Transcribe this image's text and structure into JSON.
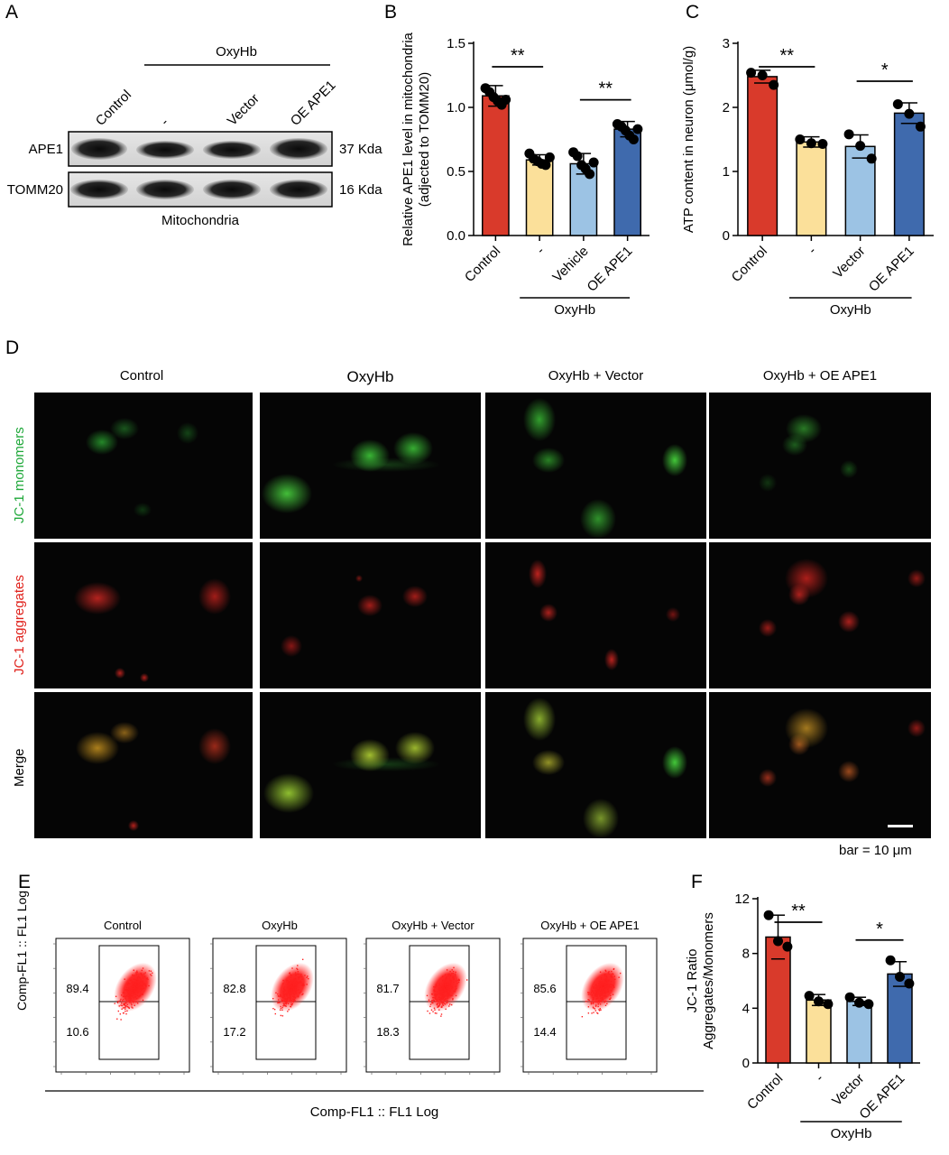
{
  "panel_labels": {
    "a": "A",
    "b": "B",
    "c": "C",
    "d": "D",
    "e": "E",
    "f": "F"
  },
  "panel_a": {
    "group_label": "OxyHb",
    "lanes": [
      "Control",
      "-",
      "Vector",
      "OE APE1"
    ],
    "rows": [
      {
        "protein": "APE1",
        "size": "37 Kda"
      },
      {
        "protein": "TOMM20",
        "size": "16 Kda"
      }
    ],
    "caption": "Mitochondria"
  },
  "chart_data": [
    {
      "id": "B",
      "type": "bar",
      "categories": [
        "Control",
        "-",
        "Vehicle",
        "OE APE1"
      ],
      "values": [
        1.09,
        0.59,
        0.56,
        0.83
      ],
      "errors": [
        0.08,
        0.04,
        0.08,
        0.06
      ],
      "points": [
        [
          1.15,
          1.12,
          1.08,
          1.05,
          1.02,
          1.06
        ],
        [
          0.64,
          0.6,
          0.58,
          0.56,
          0.55,
          0.61
        ],
        [
          0.65,
          0.62,
          0.55,
          0.52,
          0.48,
          0.57
        ],
        [
          0.87,
          0.85,
          0.82,
          0.78,
          0.75,
          0.83
        ]
      ],
      "colors": [
        "#d93a2b",
        "#fbe09a",
        "#9cc3e4",
        "#3f6aad"
      ],
      "ylim": [
        0,
        1.5
      ],
      "yticks": [
        0.0,
        0.5,
        1.0,
        1.5
      ],
      "ytick_labels": [
        "0.0",
        "0.5",
        "1.0",
        "1.5"
      ],
      "ylabel_lines": [
        "Relative APE1 level in mitochondria",
        "(adjected to TOMM20)"
      ],
      "group_label": "OxyHb",
      "significance": [
        {
          "from": 0,
          "to": 1,
          "label": "**"
        },
        {
          "from": 2,
          "to": 3,
          "label": "**"
        }
      ]
    },
    {
      "id": "C",
      "type": "bar",
      "categories": [
        "Control",
        "-",
        "Vector",
        "OE APE1"
      ],
      "values": [
        2.48,
        1.46,
        1.39,
        1.91
      ],
      "errors": [
        0.1,
        0.08,
        0.18,
        0.16
      ],
      "points": [
        [
          2.54,
          2.5,
          2.35
        ],
        [
          1.5,
          1.44,
          1.43
        ],
        [
          1.58,
          1.4,
          1.2
        ],
        [
          2.05,
          1.9,
          1.7
        ]
      ],
      "colors": [
        "#d93a2b",
        "#fbe09a",
        "#9cc3e4",
        "#3f6aad"
      ],
      "ylim": [
        0,
        3
      ],
      "yticks": [
        0,
        1,
        2,
        3
      ],
      "ytick_labels": [
        "0",
        "1",
        "2",
        "3"
      ],
      "ylabel_lines": [
        "ATP content in neuron (μmol/g)"
      ],
      "group_label": "OxyHb",
      "significance": [
        {
          "from": 0,
          "to": 1,
          "label": "**"
        },
        {
          "from": 2,
          "to": 3,
          "label": "*"
        }
      ]
    },
    {
      "id": "F",
      "type": "bar",
      "categories": [
        "Control",
        "-",
        "Vector",
        "OE APE1"
      ],
      "values": [
        9.2,
        4.6,
        4.5,
        6.5
      ],
      "errors": [
        1.6,
        0.4,
        0.3,
        0.9
      ],
      "points": [
        [
          10.8,
          8.9,
          8.5
        ],
        [
          4.9,
          4.5,
          4.3
        ],
        [
          4.8,
          4.4,
          4.3
        ],
        [
          7.5,
          6.3,
          5.8
        ]
      ],
      "colors": [
        "#d93a2b",
        "#fbe09a",
        "#9cc3e4",
        "#3f6aad"
      ],
      "ylim": [
        0,
        12
      ],
      "yticks": [
        0,
        4,
        8,
        12
      ],
      "ytick_labels": [
        "0",
        "4",
        "8",
        "12"
      ],
      "ylabel_lines": [
        "JC-1 Ratio",
        "Aggregates/Monomers"
      ],
      "group_label": "OxyHb",
      "significance": [
        {
          "from": 0,
          "to": 1,
          "label": "**"
        },
        {
          "from": 2,
          "to": 3,
          "label": "*"
        }
      ]
    },
    {
      "id": "E",
      "type": "scatter",
      "plots": [
        {
          "title": "Control",
          "upper_pct": "89.4",
          "lower_pct": "10.6"
        },
        {
          "title": "OxyHb",
          "upper_pct": "82.8",
          "lower_pct": "17.2"
        },
        {
          "title": "OxyHb + Vector",
          "upper_pct": "81.7",
          "lower_pct": "18.3"
        },
        {
          "title": "OxyHb + OE APE1",
          "upper_pct": "85.6",
          "lower_pct": "14.4"
        }
      ],
      "xlabel": "Comp-FL1 :: FL1 Log",
      "ylabel": "Comp-FL1 :: FL1 Log"
    }
  ],
  "panel_d": {
    "columns": [
      "Control",
      "OxyHb",
      "OxyHb + Vector",
      "OxyHb + OE APE1"
    ],
    "rows": [
      "JC-1 monomers",
      "JC-1 aggregates",
      "Merge"
    ],
    "row_colors": [
      "#1fa83a",
      "#e0221c",
      "#000000"
    ],
    "scale_bar": "bar = 10 μm"
  }
}
